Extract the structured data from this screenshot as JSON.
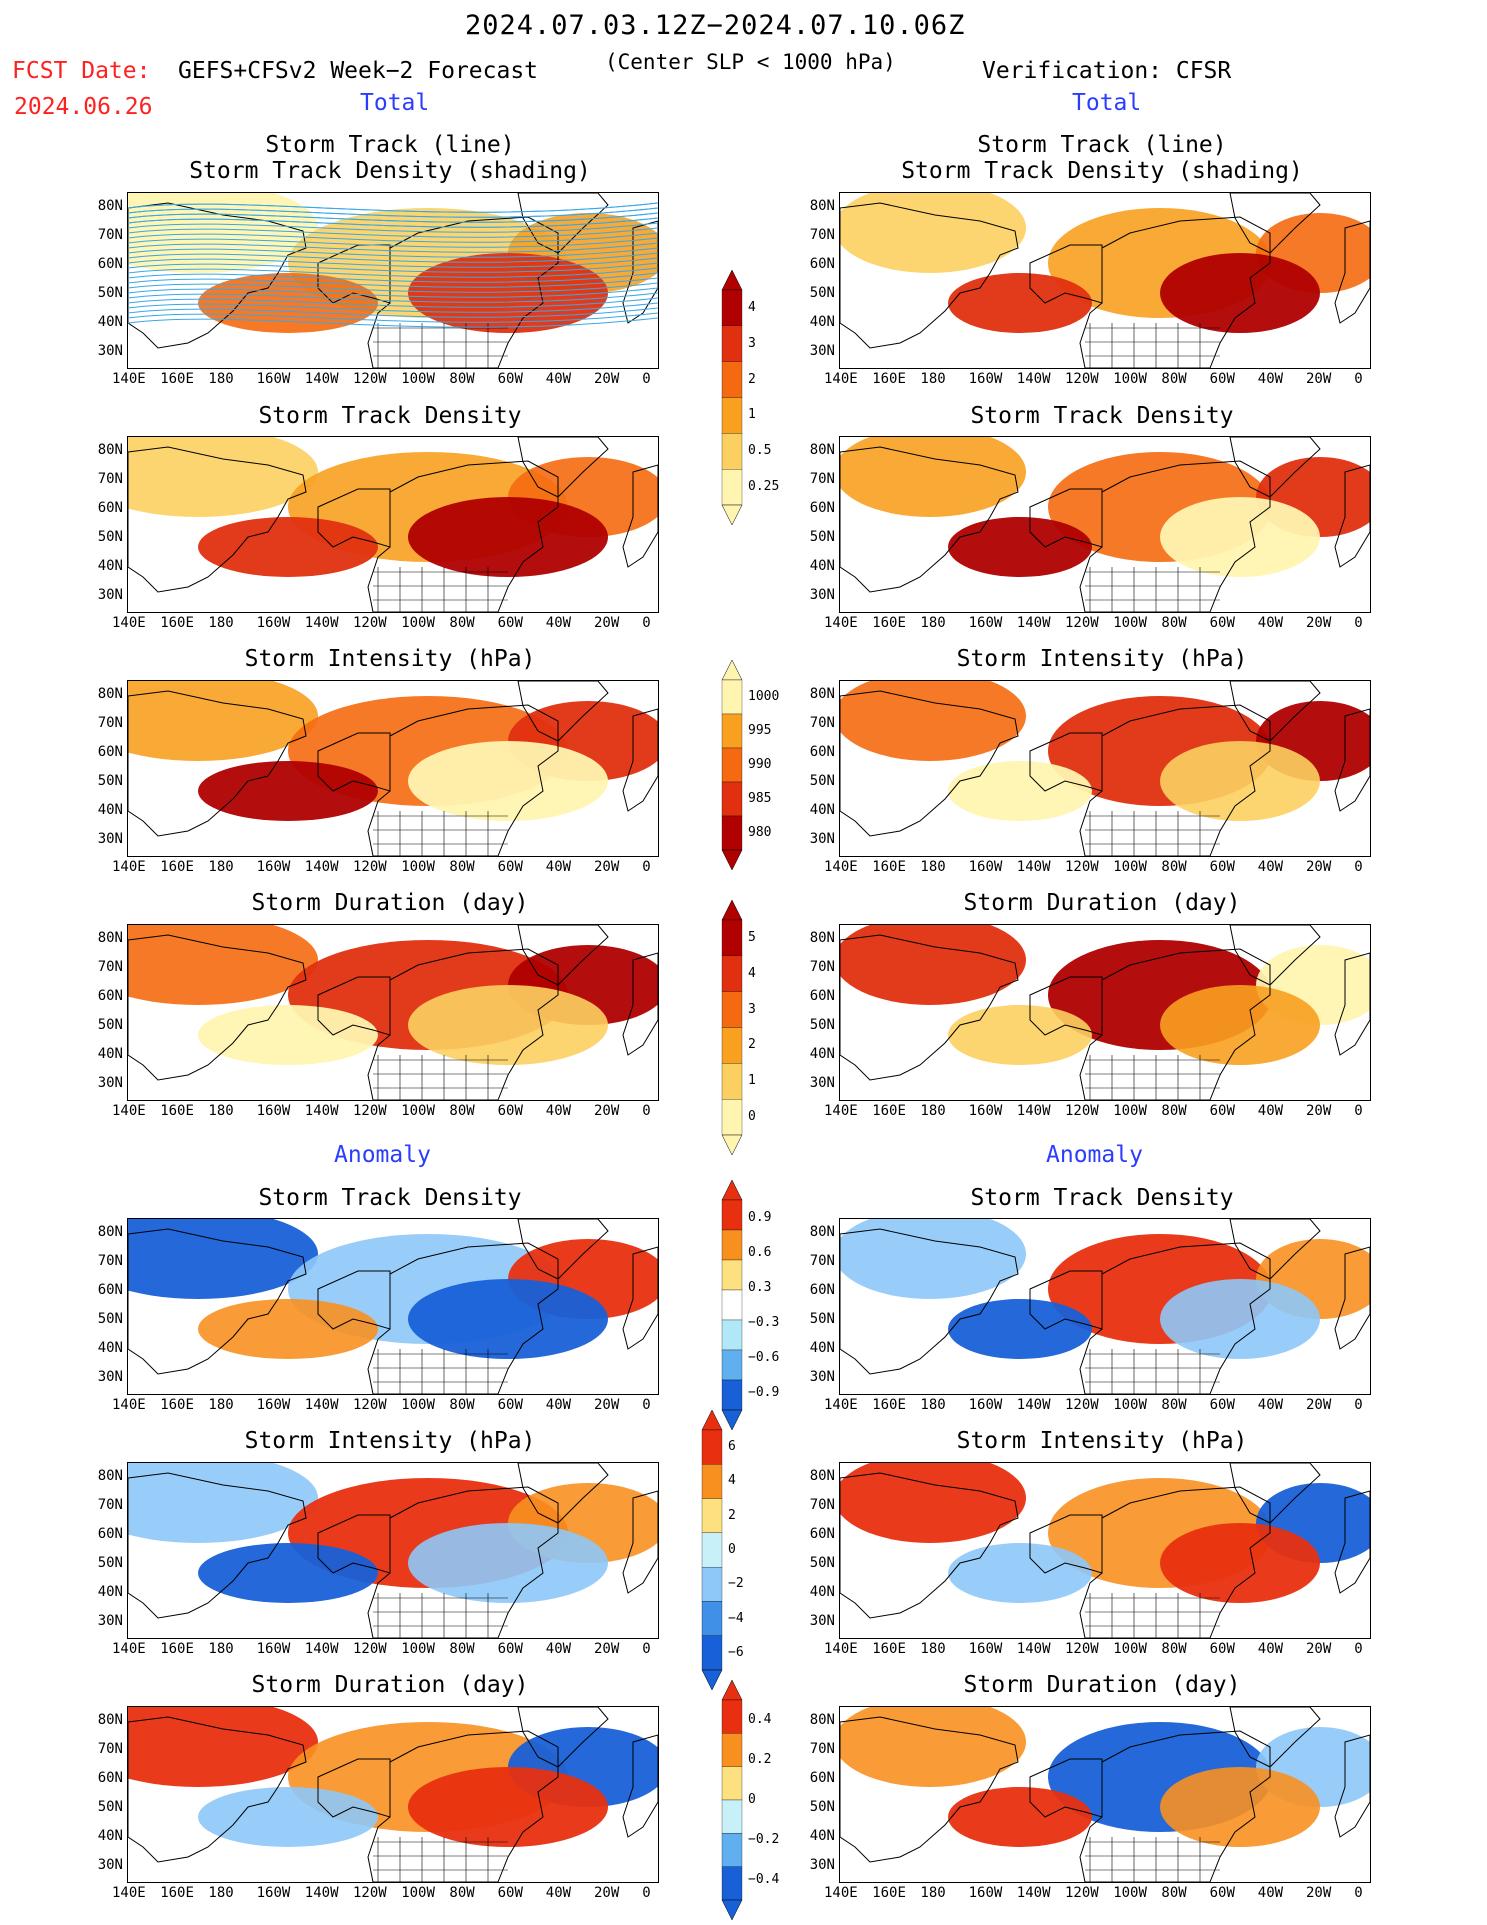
{
  "header": {
    "period": "2024.07.03.12Z−2024.07.10.06Z",
    "fcst_label": "FCST Date:",
    "fcst_date": "2024.06.26",
    "product": "GEFS+CFSv2 Week−2 Forecast",
    "criterion": "(Center SLP < 1000 hPa)",
    "verification": "Verification: CFSR"
  },
  "sections": {
    "total_left": "Total",
    "total_right": "Total",
    "anomaly_left": "Anomaly",
    "anomaly_right": "Anomaly"
  },
  "panel_titles": {
    "track_line": "Storm Track (line)",
    "track_density_shading": "Storm Track Density (shading)",
    "track_density": "Storm Track Density",
    "intensity": "Storm Intensity (hPa)",
    "duration": "Storm Duration (day)"
  },
  "axes": {
    "lat_ticks": [
      "80N",
      "70N",
      "60N",
      "50N",
      "40N",
      "30N"
    ],
    "lon_ticks": [
      "140E",
      "160E",
      "180",
      "160W",
      "140W",
      "120W",
      "100W",
      "80W",
      "60W",
      "40W",
      "20W",
      "0"
    ]
  },
  "colorbars": {
    "density": {
      "labels": [
        "4",
        "3",
        "2",
        "1",
        "0.5",
        "0.25"
      ],
      "colors": [
        "#b00000",
        "#e03010",
        "#f56a10",
        "#f8a020",
        "#fcd060",
        "#fff4b0"
      ]
    },
    "intensity": {
      "labels": [
        "1000",
        "995",
        "990",
        "985",
        "980"
      ],
      "colors": [
        "#fff4b0",
        "#f8a020",
        "#f56a10",
        "#e03010",
        "#b00000"
      ]
    },
    "duration": {
      "labels": [
        "5",
        "4",
        "3",
        "2",
        "1",
        "0"
      ],
      "colors": [
        "#b00000",
        "#e03010",
        "#f56a10",
        "#f8a020",
        "#fcd060",
        "#fff4b0"
      ]
    },
    "anom_density": {
      "labels": [
        "0.9",
        "0.6",
        "0.3",
        "−0.3",
        "−0.6",
        "−0.9"
      ],
      "colors": [
        "#e83010",
        "#f89020",
        "#fde080",
        "#ffffff",
        "#b0e8f8",
        "#60b0f0",
        "#1860d8"
      ]
    },
    "anom_intensity": {
      "labels": [
        "6",
        "4",
        "2",
        "0",
        "−2",
        "−4",
        "−6"
      ],
      "colors": [
        "#e83010",
        "#f89020",
        "#fde080",
        "#c8f0f8",
        "#8ec8f8",
        "#4090e8",
        "#1860d8"
      ]
    },
    "anom_duration": {
      "labels": [
        "0.4",
        "0.2",
        "0",
        "−0.2",
        "−0.4"
      ],
      "colors": [
        "#e83010",
        "#f89020",
        "#fde080",
        "#c8f0f8",
        "#60b0f0",
        "#1860d8"
      ]
    }
  }
}
